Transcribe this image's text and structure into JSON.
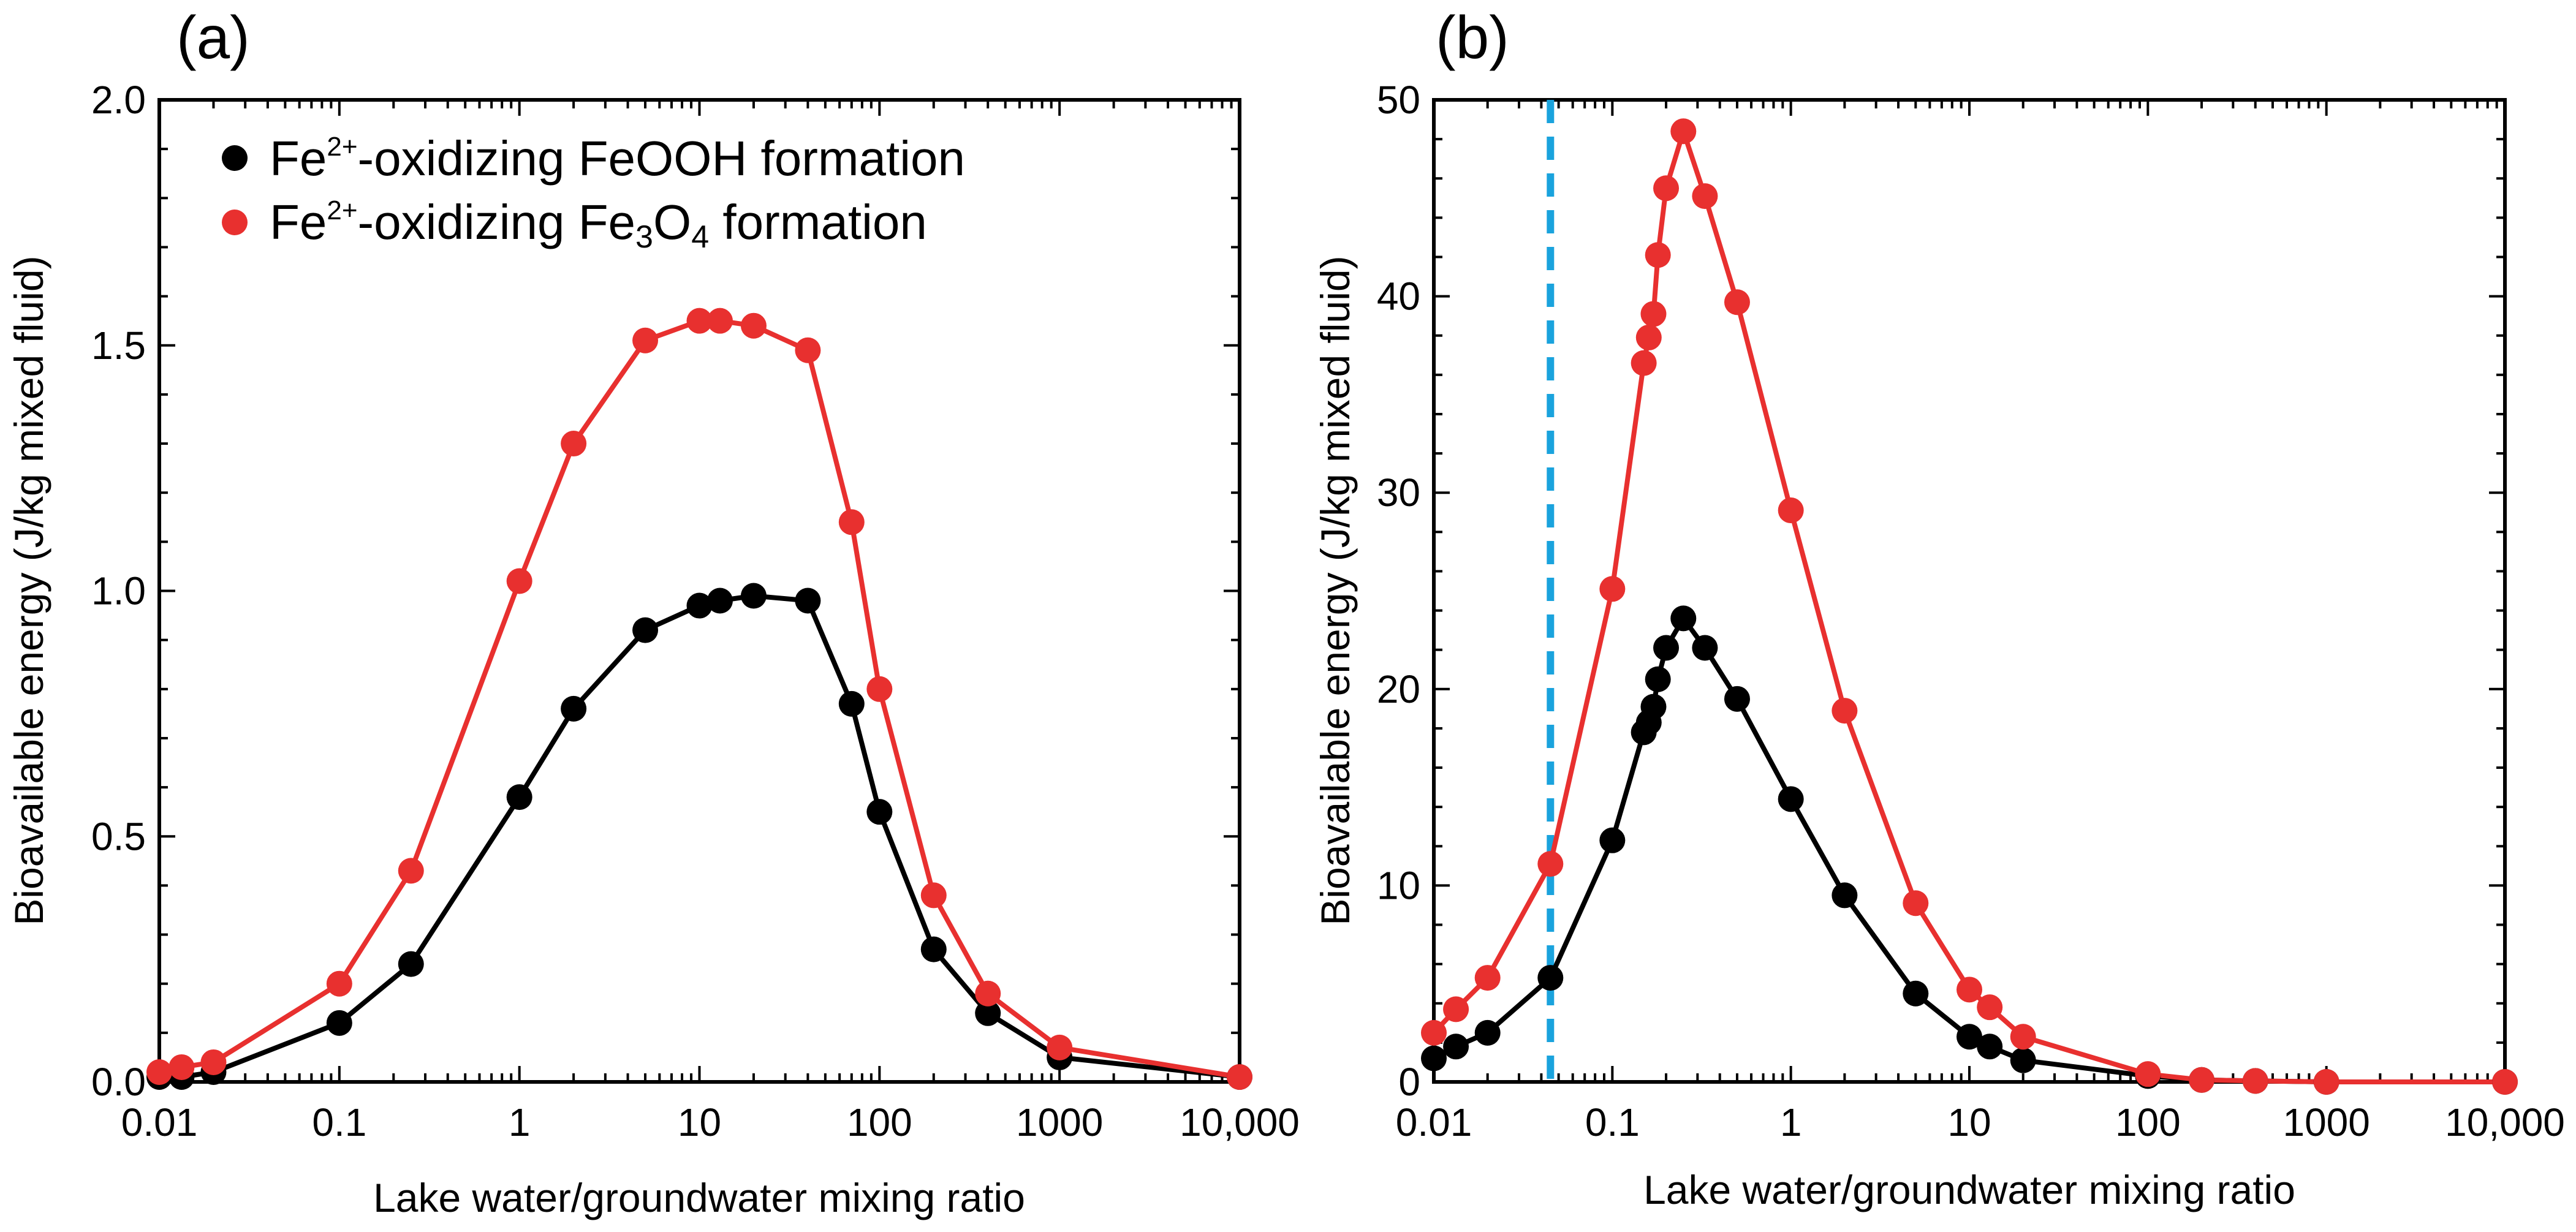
{
  "chart_data": [
    {
      "type": "line",
      "panel_label": "(a)",
      "xlabel": "Lake water/groundwater mixing ratio",
      "ylabel": "Bioavailable energy (J/kg mixed fluid)",
      "xscale": "log",
      "xlim": [
        0.01,
        10000
      ],
      "ylim": [
        0,
        2.0
      ],
      "x_tick_labels": [
        "0.01",
        "0.1",
        "1",
        "10",
        "100",
        "1000",
        "10,000"
      ],
      "y_tick_labels": [
        "0.0",
        "0.5",
        "1.0",
        "1.5",
        "2.0"
      ],
      "legend": {
        "placement": "top-left",
        "entries": [
          {
            "prefix": "Fe",
            "sup": "2+",
            "middle": "-oxidizing FeOOH formation",
            "color": "#000000"
          },
          {
            "prefix": "Fe",
            "sup": "2+",
            "middle": "-oxidizing Fe",
            "sub1": "3",
            "mid2": "O",
            "sub2": "4",
            "suffix": " formation",
            "color": "#e8302f"
          }
        ]
      },
      "series": [
        {
          "color": "#000000",
          "x": [
            0.01,
            0.0133,
            0.02,
            0.1,
            0.25,
            1,
            2,
            5,
            10,
            13,
            20,
            40,
            70,
            100,
            200,
            400,
            1000,
            10000
          ],
          "y": [
            0.01,
            0.01,
            0.02,
            0.12,
            0.24,
            0.58,
            0.76,
            0.92,
            0.97,
            0.98,
            0.99,
            0.98,
            0.77,
            0.55,
            0.27,
            0.14,
            0.05,
            0.01
          ]
        },
        {
          "color": "#e8302f",
          "x": [
            0.01,
            0.0133,
            0.02,
            0.1,
            0.25,
            1,
            2,
            5,
            10,
            13,
            20,
            40,
            70,
            100,
            200,
            400,
            1000,
            10000
          ],
          "y": [
            0.02,
            0.03,
            0.04,
            0.2,
            0.43,
            1.02,
            1.3,
            1.51,
            1.55,
            1.55,
            1.54,
            1.49,
            1.14,
            0.8,
            0.38,
            0.18,
            0.07,
            0.01
          ]
        }
      ]
    },
    {
      "type": "line",
      "panel_label": "(b)",
      "xlabel": "Lake water/groundwater mixing ratio",
      "ylabel": "Bioavailable energy (J/kg mixed fluid)",
      "xscale": "log",
      "xlim": [
        0.01,
        10000
      ],
      "ylim": [
        0,
        50
      ],
      "x_tick_labels": [
        "0.01",
        "0.1",
        "1",
        "10",
        "100",
        "1000",
        "10,000"
      ],
      "y_tick_labels": [
        "0",
        "10",
        "20",
        "30",
        "40",
        "50"
      ],
      "reference_line": {
        "x": 0.045,
        "color": "#1aa3dd",
        "style": "dashed"
      },
      "series": [
        {
          "color": "#000000",
          "x": [
            0.01,
            0.0133,
            0.02,
            0.045,
            0.1,
            0.15,
            0.16,
            0.17,
            0.18,
            0.2,
            0.25,
            0.33,
            0.5,
            1,
            2,
            5,
            10,
            13,
            20,
            100,
            200,
            400,
            1000,
            10000
          ],
          "y": [
            1.2,
            1.8,
            2.5,
            5.3,
            12.3,
            17.8,
            18.3,
            19.1,
            20.5,
            22.1,
            23.6,
            22.1,
            19.5,
            14.4,
            9.5,
            4.5,
            2.3,
            1.8,
            1.1,
            0.3,
            0.1,
            0.05,
            0,
            0
          ]
        },
        {
          "color": "#e8302f",
          "x": [
            0.01,
            0.0133,
            0.02,
            0.045,
            0.1,
            0.15,
            0.16,
            0.17,
            0.18,
            0.2,
            0.25,
            0.33,
            0.5,
            1,
            2,
            5,
            10,
            13,
            20,
            100,
            200,
            400,
            1000,
            10000
          ],
          "y": [
            2.5,
            3.7,
            5.3,
            11.1,
            25.1,
            36.6,
            37.9,
            39.1,
            42.1,
            45.5,
            48.4,
            45.1,
            39.7,
            29.1,
            18.9,
            9.1,
            4.7,
            3.8,
            2.3,
            0.4,
            0.1,
            0.05,
            0,
            0
          ]
        }
      ]
    }
  ]
}
